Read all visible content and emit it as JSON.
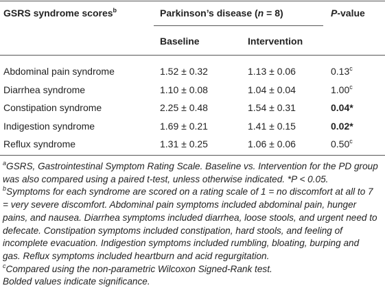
{
  "table": {
    "header": {
      "scores": {
        "text": "GSRS syndrome scores",
        "sup": "b"
      },
      "group": {
        "before": "Parkinson’s disease (",
        "italic": "n",
        "after": " = 8)"
      },
      "pvalue": {
        "italic": "P",
        "after": "-value"
      },
      "baseline": "Baseline",
      "intervention": "Intervention"
    },
    "rows": [
      {
        "name": "Abdominal pain syndrome",
        "baseline": "1.52 ± 0.32",
        "intervention": "1.13 ± 0.06",
        "p": "0.13",
        "sup": "c",
        "bold": false
      },
      {
        "name": "Diarrhea syndrome",
        "baseline": "1.10 ± 0.08",
        "intervention": "1.04 ± 0.04",
        "p": "1.00",
        "sup": "c",
        "bold": false
      },
      {
        "name": "Constipation syndrome",
        "baseline": "2.25 ± 0.48",
        "intervention": "1.54 ± 0.31",
        "p": "0.04*",
        "bold": true
      },
      {
        "name": "Indigestion syndrome",
        "baseline": "1.69 ± 0.21",
        "intervention": "1.41 ± 0.15",
        "p": "0.02*",
        "bold": true
      },
      {
        "name": "Reflux syndrome",
        "baseline": "1.31 ± 0.25",
        "intervention": "1.06 ± 0.06",
        "p": "0.50",
        "sup": "c",
        "bold": false
      }
    ]
  },
  "footnotes": [
    {
      "mark": "a",
      "text": "GSRS, Gastrointestinal Symptom Rating Scale. Baseline vs. Intervention for the PD group was also compared using a paired t-test, unless otherwise indicated. *P < 0.05."
    },
    {
      "mark": "b",
      "text": "Symptoms for each syndrome are scored on a rating scale of 1 = no discomfort at all to 7 = very severe discomfort. Abdominal pain symptoms included abdominal pain, hunger pains, and nausea. Diarrhea symptoms included diarrhea, loose stools, and urgent need to defecate. Constipation symptoms included constipation, hard stools, and feeling of incomplete evacuation. Indigestion symptoms included rumbling, bloating, burping and gas. Reflux symptoms included heartburn and acid regurgitation."
    },
    {
      "mark": "c",
      "text": "Compared using the non-parametric Wilcoxon Signed-Rank test."
    },
    {
      "text": "Bolded values indicate significance."
    }
  ]
}
